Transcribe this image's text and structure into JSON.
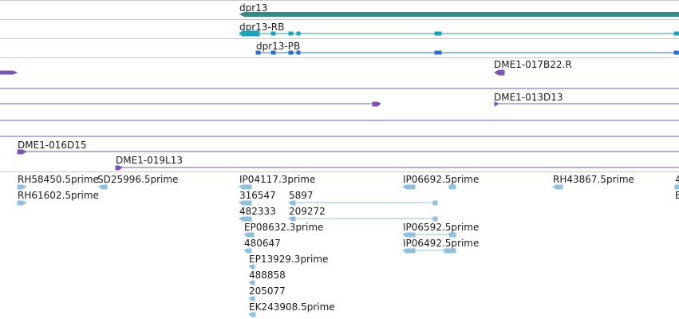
{
  "colors": {
    "gene": "#2e8a8a",
    "transcript_rb": "#1aa3c0",
    "transcript_pb": "#2a6fcc",
    "clone": "#7b55b0",
    "est": "#8fc0e0",
    "separator": "#c9c9c9"
  },
  "tracks": {
    "gene": {
      "label": "dpr13"
    },
    "transcript_rb": {
      "label": "dpr13-RB"
    },
    "transcript_pb": {
      "label": "dpr13-PB"
    },
    "clones": [
      {
        "label": "DME1-017B22.R"
      },
      {
        "label": "DME1-013D13"
      },
      {
        "label": "DME1-016D15"
      },
      {
        "label": "DME1-019L13"
      }
    ],
    "ests": [
      "RH58450.5prime",
      "SD25996.5prime",
      "IP04117.3prime",
      "IP06692.5prime",
      "RH43867.5prime",
      "RH61602.5prime",
      "316547",
      "5897",
      "482333",
      "209272",
      "EP08632.3prime",
      "IP06592.5prime",
      "480647",
      "IP06492.5prime",
      "EP13929.3prime",
      "488858",
      "205077",
      "EK243908.5prime"
    ]
  }
}
